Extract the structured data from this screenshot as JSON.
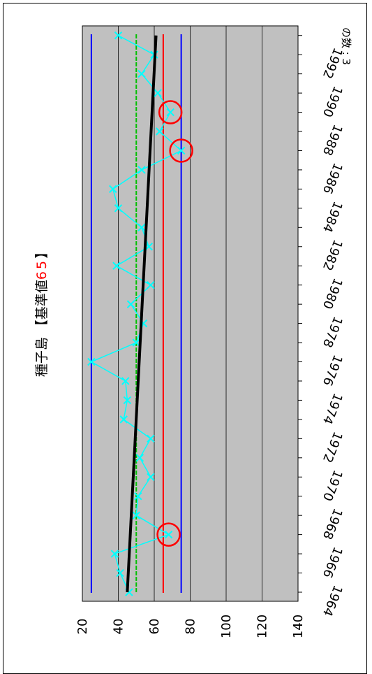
{
  "chart_data": {
    "type": "line",
    "title_main": "種子島 【基準値",
    "title_value": "65",
    "title_close": "】",
    "count_label": "の数 : 3",
    "x": [
      1964,
      1965,
      1966,
      1967,
      1968,
      1969,
      1970,
      1971,
      1972,
      1973,
      1974,
      1975,
      1976,
      1977,
      1978,
      1979,
      1980,
      1981,
      1982,
      1983,
      1984,
      1985,
      1986,
      1987,
      1988,
      1989,
      1990,
      1991,
      1992,
      1993
    ],
    "x_ticks": [
      1964,
      1966,
      1968,
      1970,
      1972,
      1974,
      1976,
      1978,
      1980,
      1982,
      1984,
      1986,
      1988,
      1990,
      1992
    ],
    "y_ticks": [
      20,
      40,
      60,
      80,
      100,
      120,
      140
    ],
    "ylim": [
      20,
      140
    ],
    "xlim": [
      1964,
      1993.5
    ],
    "grid": true,
    "series": [
      {
        "values": [
          46,
          41,
          38,
          68,
          50,
          51,
          58,
          52,
          58,
          43,
          45,
          44,
          25,
          50,
          54,
          47,
          58,
          39,
          57,
          53,
          40,
          37,
          53,
          75,
          63,
          69,
          62,
          53,
          60,
          40
        ],
        "color": "#00ffff"
      }
    ],
    "reference_lines": [
      {
        "value": 75,
        "color": "#0000ff"
      },
      {
        "value": 65,
        "color": "#ff0000"
      },
      {
        "value": 50,
        "color": "#00c000"
      },
      {
        "value": 25,
        "color": "#0000ff"
      }
    ],
    "trend": {
      "start": [
        1964,
        45
      ],
      "end": [
        1993,
        61
      ],
      "color": "#000000"
    },
    "highlights": [
      1967,
      1987,
      1989
    ],
    "colors": {
      "plot_bg": "#c0c0c0",
      "title_value": "#ff0000",
      "highlight": "#ff0000"
    }
  }
}
